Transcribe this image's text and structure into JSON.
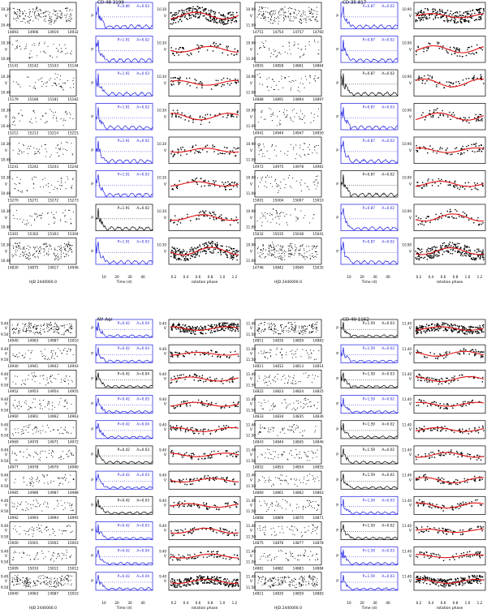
{
  "figure": {
    "quadrants": [
      {
        "title": "CD-48 3199",
        "rows": [
          {
            "ylab_lc": "V",
            "ylab_per": "P",
            "ylab_ph": "V",
            "xt": [
              "14893",
              "14906",
              "14919",
              "14932"
            ],
            "peri": [
              "P=0.86",
              "A=0.03"
            ],
            "yt": [
              "10.30",
              "10.40"
            ]
          },
          {
            "ylab_lc": "V",
            "ylab_per": "P",
            "ylab_ph": "V",
            "xt": [
              "15141",
              "15142",
              "15143",
              "15144"
            ],
            "peri": [
              "P=1.91",
              "A=0.02"
            ],
            "yt": [
              "10.30",
              "10.40"
            ]
          },
          {
            "ylab_lc": "V",
            "ylab_per": "P",
            "ylab_ph": "V",
            "xt": [
              "15179",
              "15180",
              "15181",
              "15182"
            ],
            "peri": [
              "P=1.91",
              "A=0.03"
            ],
            "yt": [
              "10.30",
              "10.40"
            ]
          },
          {
            "ylab_lc": "V",
            "ylab_per": "P",
            "ylab_ph": "V",
            "xt": [
              "15212",
              "15213",
              "15214",
              "15215"
            ],
            "peri": [
              "P=1.91",
              "A=0.02"
            ],
            "yt": [
              "10.30",
              "10.40"
            ]
          },
          {
            "ylab_lc": "V",
            "ylab_per": "P",
            "ylab_ph": "V",
            "xt": [
              "15241",
              "15242",
              "15243",
              "15244"
            ],
            "peri": [
              "P=1.91",
              "A=0.02"
            ],
            "yt": [
              "10.30",
              "10.40"
            ]
          },
          {
            "ylab_lc": "V",
            "ylab_per": "P",
            "ylab_ph": "V",
            "xt": [
              "15270",
              "15271",
              "15272",
              "15273"
            ],
            "peri": [
              "P=1.91",
              "A=0.03"
            ],
            "yt": [
              "10.30",
              "10.40"
            ]
          },
          {
            "ylab_lc": "V",
            "ylab_per": "P",
            "ylab_ph": "V",
            "xt": [
              "15301",
              "15302",
              "15303",
              "15304"
            ],
            "peri": [
              "P=1.91",
              "A=0.02"
            ],
            "yt": [
              "10.30",
              "10.40"
            ]
          },
          {
            "ylab_lc": "V",
            "ylab_per": "P",
            "ylab_ph": "V",
            "xt": [
              "14830",
              "14875",
              "14917",
              "14946"
            ],
            "peri": [
              "P=1.91",
              "A=0.03"
            ],
            "yt": [
              "10.30",
              "10.40"
            ]
          }
        ],
        "xlabels": [
          "HJD 2440000.0",
          "Time (d)",
          "rotation phase"
        ],
        "per_ticks": [
          "10",
          "20",
          "30",
          "40"
        ],
        "ph_ticks": [
          "0.2",
          "0.4",
          "0.6",
          "0.8",
          "1.0",
          "1.2"
        ]
      },
      {
        "title": "CD-35 817",
        "rows": [
          {
            "ylab_lc": "V",
            "ylab_per": "P",
            "ylab_ph": "V",
            "xt": [
              "14751",
              "14754",
              "14757",
              "14760"
            ],
            "peri": [
              "P=0.87",
              "A=0.02"
            ],
            "yt": [
              "10.90",
              "11.00"
            ]
          },
          {
            "ylab_lc": "V",
            "ylab_per": "P",
            "ylab_ph": "V",
            "xt": [
              "14855",
              "14858",
              "14861",
              "14864"
            ],
            "peri": [
              "P=0.87",
              "A=0.02"
            ],
            "yt": [
              "10.90",
              "11.00"
            ]
          },
          {
            "ylab_lc": "V",
            "ylab_per": "P",
            "ylab_ph": "V",
            "xt": [
              "14888",
              "14891",
              "14894",
              "14897"
            ],
            "peri": [
              "P=0.87",
              "A=0.02"
            ],
            "yt": [
              "10.90",
              "11.00"
            ]
          },
          {
            "ylab_lc": "V",
            "ylab_per": "P",
            "ylab_ph": "V",
            "xt": [
              "14941",
              "14944",
              "14947",
              "14950"
            ],
            "peri": [
              "P=0.87",
              "A=0.03"
            ],
            "yt": [
              "10.90",
              "11.00"
            ]
          },
          {
            "ylab_lc": "V",
            "ylab_per": "P",
            "ylab_ph": "V",
            "xt": [
              "14972",
              "14975",
              "14978",
              "14981"
            ],
            "peri": [
              "P=0.87",
              "A=0.02"
            ],
            "yt": [
              "10.90",
              "11.00"
            ]
          },
          {
            "ylab_lc": "V",
            "ylab_per": "P",
            "ylab_ph": "V",
            "xt": [
              "15001",
              "15004",
              "15007",
              "15010"
            ],
            "peri": [
              "P=0.87",
              "A=0.02"
            ],
            "yt": [
              "10.90",
              "11.00"
            ]
          },
          {
            "ylab_lc": "V",
            "ylab_per": "P",
            "ylab_ph": "V",
            "xt": [
              "15032",
              "15035",
              "15038",
              "15041"
            ],
            "peri": [
              "P=0.87",
              "A=0.02"
            ],
            "yt": [
              "10.90",
              "11.00"
            ]
          },
          {
            "ylab_lc": "V",
            "ylab_per": "P",
            "ylab_ph": "V",
            "xt": [
              "14746",
              "14842",
              "14940",
              "15035"
            ],
            "peri": [
              "P=0.87",
              "A=0.02"
            ],
            "yt": [
              "10.90",
              "11.00"
            ]
          }
        ],
        "xlabels": [
          "HJD 2440000.0",
          "Time (d)",
          "rotation phase"
        ],
        "per_ticks": [
          "10",
          "20",
          "30",
          "40"
        ],
        "ph_ticks": [
          "0.2",
          "0.4",
          "0.6",
          "0.8",
          "1.0",
          "1.2"
        ]
      },
      {
        "title": "NY Aqr",
        "rows": [
          {
            "ylab_lc": "V",
            "ylab_per": "P",
            "ylab_ph": "V",
            "xt": [
              "14940",
              "14963",
              "14987",
              "15010"
            ],
            "peri": [
              "P=0.42",
              "A=0.04"
            ],
            "yt": [
              "9.40",
              "9.50"
            ]
          },
          {
            "ylab_lc": "V",
            "ylab_per": "P",
            "ylab_ph": "V",
            "xt": [
              "14940",
              "14941",
              "14942",
              "14943"
            ],
            "peri": [
              "P=0.42",
              "A=0.03"
            ],
            "yt": [
              "9.40",
              "9.50"
            ]
          },
          {
            "ylab_lc": "V",
            "ylab_per": "P",
            "ylab_ph": "V",
            "xt": [
              "14952",
              "14953",
              "14954",
              "14955"
            ],
            "peri": [
              "P=0.42",
              "A=0.04"
            ],
            "yt": [
              "9.40",
              "9.50"
            ]
          },
          {
            "ylab_lc": "V",
            "ylab_per": "P",
            "ylab_ph": "V",
            "xt": [
              "14960",
              "14961",
              "14962",
              "14963"
            ],
            "peri": [
              "P=0.42",
              "A=0.05"
            ],
            "yt": [
              "9.40",
              "9.50"
            ]
          },
          {
            "ylab_lc": "V",
            "ylab_per": "P",
            "ylab_ph": "V",
            "xt": [
              "14969",
              "14970",
              "14971",
              "14972"
            ],
            "peri": [
              "P=0.42",
              "A=0.04"
            ],
            "yt": [
              "9.40",
              "9.50"
            ]
          },
          {
            "ylab_lc": "V",
            "ylab_per": "P",
            "ylab_ph": "V",
            "xt": [
              "14977",
              "14978",
              "14979",
              "14980"
            ],
            "peri": [
              "P=0.42",
              "A=0.03"
            ],
            "yt": [
              "9.40",
              "9.50"
            ]
          },
          {
            "ylab_lc": "V",
            "ylab_per": "P",
            "ylab_ph": "V",
            "xt": [
              "14985",
              "14986",
              "14987",
              "14988"
            ],
            "peri": [
              "P=0.42",
              "A=0.03"
            ],
            "yt": [
              "9.40",
              "9.50"
            ]
          },
          {
            "ylab_lc": "V",
            "ylab_per": "P",
            "ylab_ph": "V",
            "xt": [
              "14992",
              "14993",
              "14994",
              "14995"
            ],
            "peri": [
              "P=0.42",
              "A=0.03"
            ],
            "yt": [
              "9.40",
              "9.50"
            ]
          },
          {
            "ylab_lc": "V",
            "ylab_per": "P",
            "ylab_ph": "V",
            "xt": [
              "15000",
              "15001",
              "15002",
              "15003"
            ],
            "peri": [
              "P=0.42",
              "A=0.03"
            ],
            "yt": [
              "9.40",
              "9.50"
            ]
          },
          {
            "ylab_lc": "V",
            "ylab_per": "P",
            "ylab_ph": "V",
            "xt": [
              "15009",
              "15010",
              "15011",
              "15012"
            ],
            "peri": [
              "P=0.42",
              "A=0.04"
            ],
            "yt": [
              "9.40",
              "9.50"
            ]
          },
          {
            "ylab_lc": "V",
            "ylab_per": "P",
            "ylab_ph": "V",
            "xt": [
              "14940",
              "14963",
              "14987",
              "15010"
            ],
            "peri": [
              "P=0.42",
              "A=0.04"
            ],
            "yt": [
              "9.40",
              "9.50"
            ]
          }
        ],
        "xlabels": [
          "HJD 2440000.0",
          "Time (d)",
          "rotation phase"
        ],
        "per_ticks": [
          "10",
          "20",
          "30",
          "40"
        ],
        "ph_ticks": [
          "0.2",
          "0.4",
          "0.6",
          "0.8",
          "1.0",
          "1.2"
        ]
      },
      {
        "title": "CD-40 1162",
        "rows": [
          {
            "ylab_lc": "V",
            "ylab_per": "P",
            "ylab_ph": "V",
            "xt": [
              "14811",
              "14835",
              "14859",
              "14883"
            ],
            "peri": [
              "P=1.59",
              "A=0.03"
            ],
            "yt": [
              "11.40",
              "11.50"
            ]
          },
          {
            "ylab_lc": "V",
            "ylab_per": "P",
            "ylab_ph": "V",
            "xt": [
              "14811",
              "14812",
              "14813",
              "14814"
            ],
            "peri": [
              "P=1.59",
              "A=0.02"
            ],
            "yt": [
              "11.40",
              "11.50"
            ]
          },
          {
            "ylab_lc": "V",
            "ylab_per": "P",
            "ylab_ph": "V",
            "xt": [
              "14822",
              "14823",
              "14824",
              "14825"
            ],
            "peri": [
              "P=1.59",
              "A=0.03"
            ],
            "yt": [
              "11.40",
              "11.50"
            ]
          },
          {
            "ylab_lc": "V",
            "ylab_per": "P",
            "ylab_ph": "V",
            "xt": [
              "14833",
              "14834",
              "14835",
              "14836"
            ],
            "peri": [
              "P=1.59",
              "A=0.02"
            ],
            "yt": [
              "11.40",
              "11.50"
            ]
          },
          {
            "ylab_lc": "V",
            "ylab_per": "P",
            "ylab_ph": "V",
            "xt": [
              "14843",
              "14844",
              "14845",
              "14846"
            ],
            "peri": [
              "P=1.59",
              "A=0.02"
            ],
            "yt": [
              "11.40",
              "11.50"
            ]
          },
          {
            "ylab_lc": "V",
            "ylab_per": "P",
            "ylab_ph": "V",
            "xt": [
              "14852",
              "14853",
              "14854",
              "14855"
            ],
            "peri": [
              "P=1.59",
              "A=0.02"
            ],
            "yt": [
              "11.40",
              "11.50"
            ]
          },
          {
            "ylab_lc": "V",
            "ylab_per": "P",
            "ylab_ph": "V",
            "xt": [
              "14860",
              "14861",
              "14862",
              "14863"
            ],
            "peri": [
              "P=1.59",
              "A=0.02"
            ],
            "yt": [
              "11.40",
              "11.50"
            ]
          },
          {
            "ylab_lc": "V",
            "ylab_per": "P",
            "ylab_ph": "V",
            "xt": [
              "14868",
              "14869",
              "14870",
              "14871"
            ],
            "peri": [
              "P=1.59",
              "A=0.03"
            ],
            "yt": [
              "11.40",
              "11.50"
            ]
          },
          {
            "ylab_lc": "V",
            "ylab_per": "P",
            "ylab_ph": "V",
            "xt": [
              "14875",
              "14876",
              "14877",
              "14878"
            ],
            "peri": [
              "P=1.59",
              "A=0.02"
            ],
            "yt": [
              "11.40",
              "11.50"
            ]
          },
          {
            "ylab_lc": "V",
            "ylab_per": "P",
            "ylab_ph": "V",
            "xt": [
              "14881",
              "14882",
              "14883",
              "14884"
            ],
            "peri": [
              "P=1.59",
              "A=0.03"
            ],
            "yt": [
              "11.40",
              "11.50"
            ]
          },
          {
            "ylab_lc": "V",
            "ylab_per": "P",
            "ylab_ph": "V",
            "xt": [
              "14811",
              "14835",
              "14859",
              "14883"
            ],
            "peri": [
              "P=1.59",
              "A=0.03"
            ],
            "yt": [
              "11.40",
              "11.50"
            ]
          }
        ],
        "xlabels": [
          "HJD 2440000.0",
          "Time (d)",
          "rotation phase"
        ],
        "per_ticks": [
          "10",
          "20",
          "30",
          "40"
        ],
        "ph_ticks": [
          "0.2",
          "0.4",
          "0.6",
          "0.8",
          "1.0",
          "1.2"
        ]
      }
    ]
  },
  "chart_data": {
    "type": "scatter",
    "description_series": [
      "light curve",
      "periodogram",
      "phased light curve"
    ],
    "colors": {
      "axes": "#000000",
      "periodogram": "#1a1adf",
      "fit": "#e01010",
      "points": "#000000"
    }
  }
}
